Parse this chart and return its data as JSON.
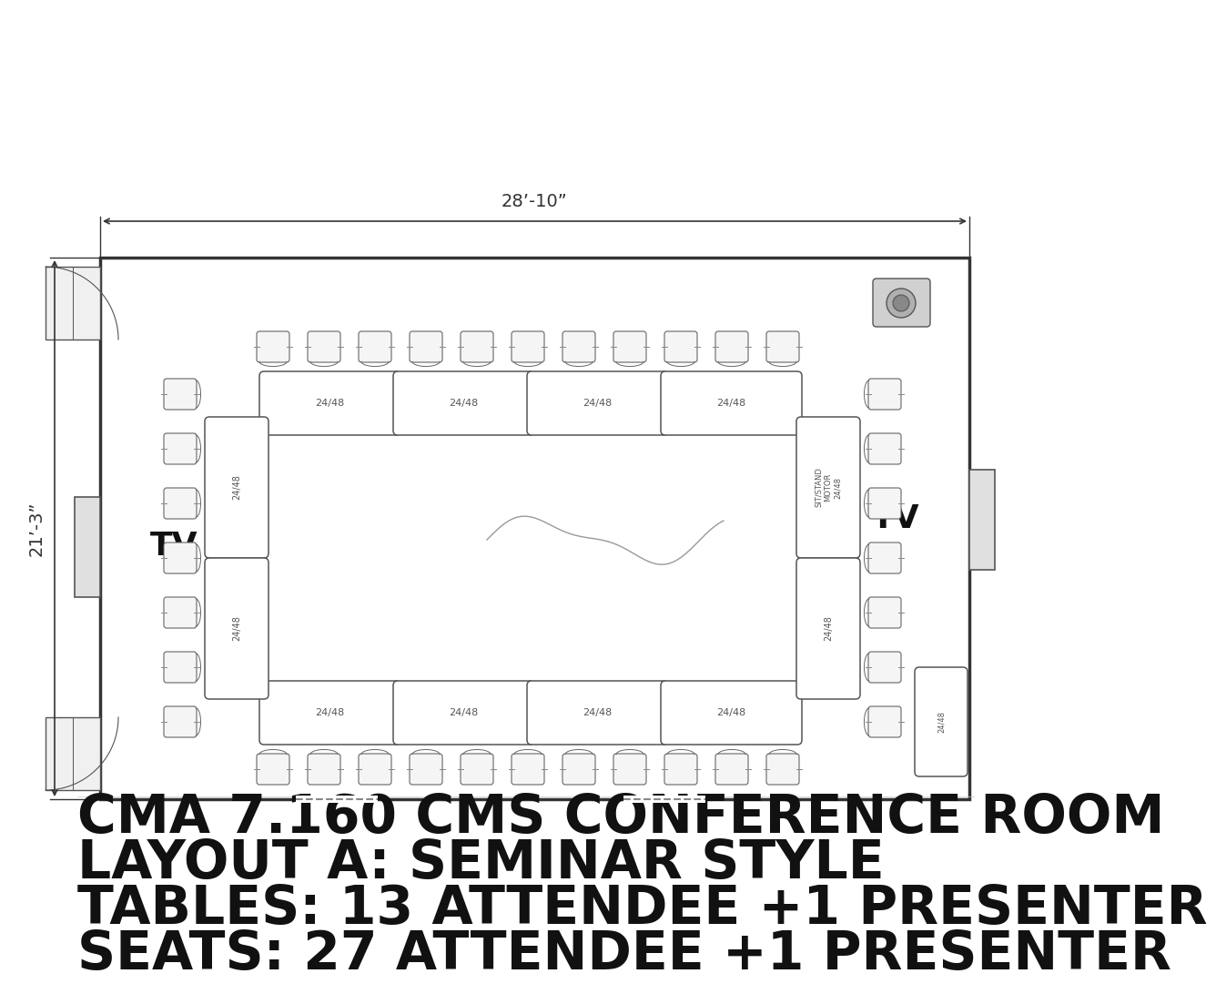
{
  "title_line1": "CMA 7.160 CMS CONFERENCE ROOM",
  "title_line2": "LAYOUT A: SEMINAR STYLE",
  "title_line3": "TABLES: 13 ATTENDEE +1 PRESENTER",
  "title_line4": "SEATS: 27 ATTENDEE +1 PRESENTER",
  "room_width_label": "28’-10”",
  "room_height_label": "21’-3”",
  "bg_color": "#ffffff",
  "line_color": "#555555",
  "tv_fontsize": 26,
  "title_fontsize": 42
}
